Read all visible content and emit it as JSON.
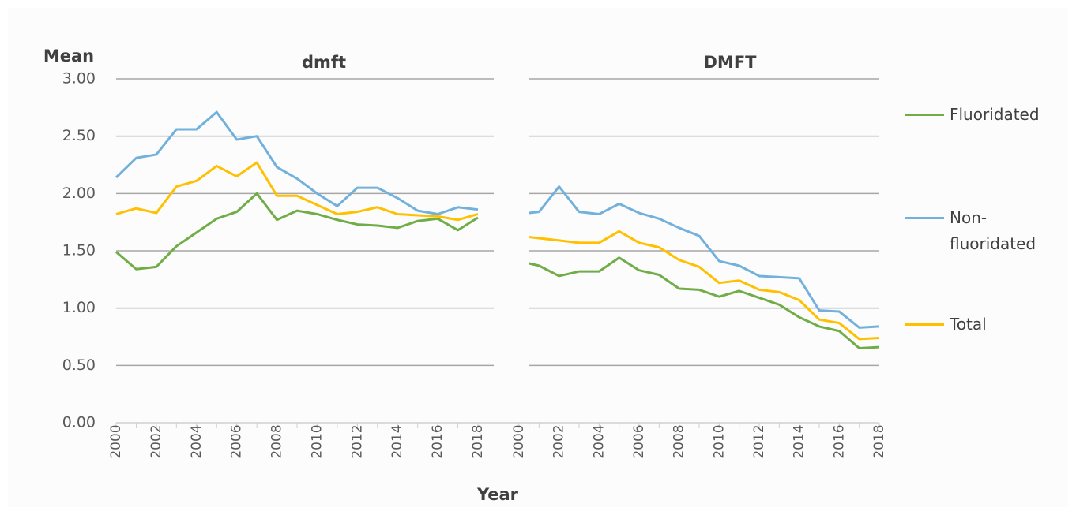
{
  "chart_data": {
    "type": "line",
    "y_label": "Mean",
    "x_label": "Year",
    "ylim": [
      0,
      3
    ],
    "yticks": [
      {
        "value": 0,
        "label": "0.00"
      },
      {
        "value": 0.5,
        "label": "0.50"
      },
      {
        "value": 1,
        "label": "1.00"
      },
      {
        "value": 1.5,
        "label": "1.50"
      },
      {
        "value": 2,
        "label": "2.00"
      },
      {
        "value": 2.5,
        "label": "2.50"
      },
      {
        "value": 3,
        "label": "3.00"
      }
    ],
    "xlim": [
      2000,
      2018
    ],
    "xticks": [
      2000,
      2002,
      2004,
      2006,
      2008,
      2010,
      2012,
      2014,
      2016,
      2018
    ],
    "grid": true,
    "legend": "right",
    "series": [
      {
        "name": "Fluoridated",
        "color": "#70ad47"
      },
      {
        "name": "Non-fluoridated",
        "color": "#72b1dc"
      },
      {
        "name": "Total",
        "color": "#ffc000"
      }
    ],
    "panels": [
      {
        "title": "dmft",
        "x": [
          2000,
          2001,
          2002,
          2003,
          2004,
          2005,
          2006,
          2007,
          2008,
          2009,
          2010,
          2011,
          2012,
          2013,
          2014,
          2015,
          2016,
          2017,
          2018
        ],
        "values": [
          [
            1.49,
            1.34,
            1.36,
            1.54,
            1.66,
            1.78,
            1.84,
            2.0,
            1.77,
            1.85,
            1.82,
            1.77,
            1.73,
            1.72,
            1.7,
            1.76,
            1.78,
            1.68,
            1.79
          ],
          [
            2.14,
            2.31,
            2.34,
            2.56,
            2.56,
            2.71,
            2.47,
            2.5,
            2.23,
            2.13,
            2.0,
            1.89,
            2.05,
            2.05,
            1.96,
            1.85,
            1.82,
            1.88,
            1.86
          ],
          [
            1.82,
            1.87,
            1.83,
            2.06,
            2.11,
            2.24,
            2.15,
            2.27,
            1.98,
            1.98,
            1.9,
            1.82,
            1.84,
            1.88,
            1.82,
            1.81,
            1.8,
            1.77,
            1.82
          ]
        ]
      },
      {
        "title": "DMFT",
        "x": [
          2000.5,
          2001,
          2002,
          2003,
          2004,
          2005,
          2006,
          2007,
          2008,
          2009,
          2010,
          2011,
          2012,
          2013,
          2014,
          2015,
          2016,
          2017,
          2018
        ],
        "values": [
          [
            1.39,
            1.37,
            1.28,
            1.32,
            1.32,
            1.44,
            1.33,
            1.29,
            1.17,
            1.16,
            1.1,
            1.15,
            1.09,
            1.03,
            0.92,
            0.84,
            0.8,
            0.65,
            0.66
          ],
          [
            1.83,
            1.84,
            2.06,
            1.84,
            1.82,
            1.91,
            1.83,
            1.78,
            1.7,
            1.63,
            1.41,
            1.37,
            1.28,
            1.27,
            1.26,
            0.98,
            0.97,
            0.83,
            0.84
          ],
          [
            1.62,
            1.61,
            1.59,
            1.57,
            1.57,
            1.67,
            1.57,
            1.53,
            1.42,
            1.36,
            1.22,
            1.24,
            1.16,
            1.14,
            1.07,
            0.9,
            0.87,
            0.73,
            0.74
          ]
        ]
      }
    ]
  }
}
